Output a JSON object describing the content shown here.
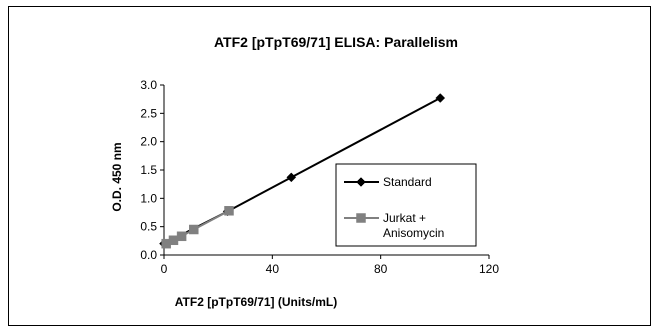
{
  "chart_data": {
    "type": "line",
    "title": "ATF2 [pTpT69/71] ELISA: Parallelism",
    "xlabel": "ATF2 [pTpT69/71] (Units/mL)",
    "ylabel": "O.D. 450 nm",
    "xlim": [
      0,
      120
    ],
    "ylim": [
      0,
      3.0
    ],
    "xticks": [
      "0",
      "40",
      "80",
      "120"
    ],
    "yticks": [
      "0.0",
      "0.5",
      "1.0",
      "1.5",
      "2.0",
      "2.5",
      "3.0"
    ],
    "grid": false,
    "legend_position": "right",
    "series": [
      {
        "name": "Standard",
        "color": "#000000",
        "marker": "diamond",
        "x": [
          0,
          23.5,
          47,
          102
        ],
        "y": [
          0.2,
          0.77,
          1.37,
          2.77
        ]
      },
      {
        "name": "Jurkat + Anisomycin",
        "legend_lines": [
          "Jurkat +",
          "Anisomycin"
        ],
        "color": "#808080",
        "marker": "square",
        "x": [
          0.8,
          3.5,
          6.5,
          11,
          24
        ],
        "y": [
          0.2,
          0.26,
          0.33,
          0.45,
          0.78
        ]
      }
    ]
  }
}
